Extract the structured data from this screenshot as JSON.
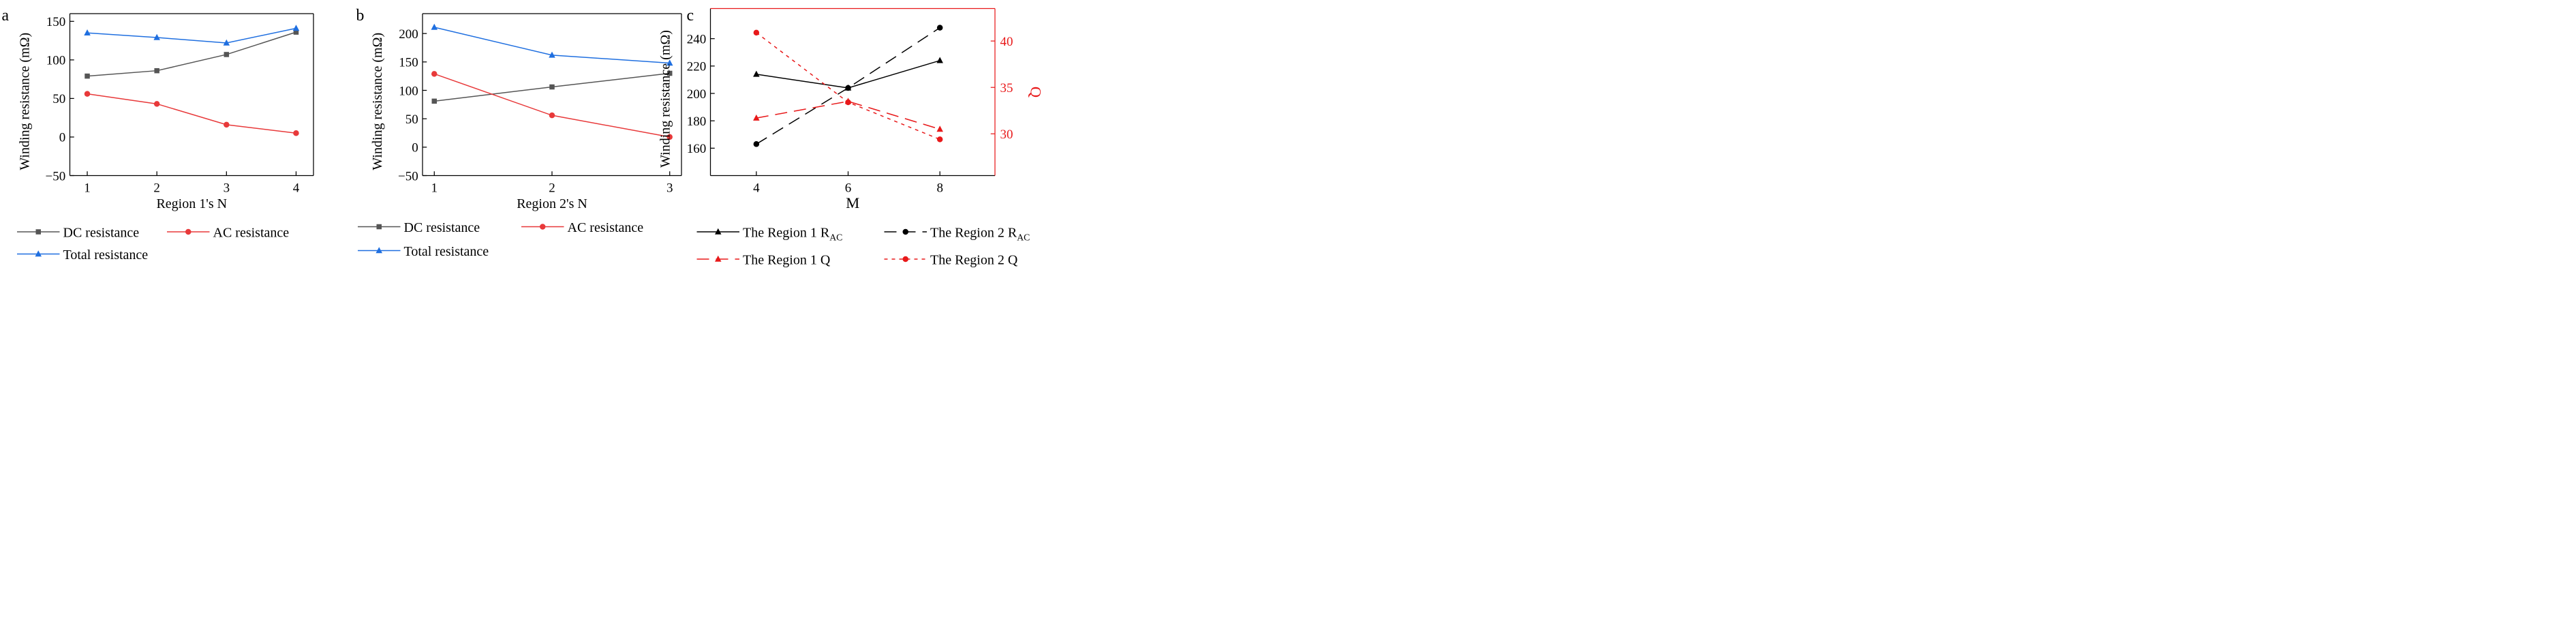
{
  "chart_data": [
    {
      "panel_label": "a",
      "type": "line",
      "x": [
        1,
        2,
        3,
        4
      ],
      "xticks": [
        "1",
        "2",
        "3",
        "4"
      ],
      "xlim": [
        0.75,
        4.25
      ],
      "ylim": [
        -50,
        160
      ],
      "yticks": [
        -50,
        0,
        50,
        100,
        150
      ],
      "ytick_labels": [
        "−50",
        "0",
        "50",
        "100",
        "150"
      ],
      "xlabel": "Region 1's N",
      "ylabel": "Winding resistance (mΩ)",
      "series": [
        {
          "name": "DC resistance",
          "values": [
            79,
            86,
            107,
            136
          ],
          "color": "#555555",
          "marker": "square",
          "dash": "solid"
        },
        {
          "name": "AC resistance",
          "values": [
            56,
            43,
            16,
            5
          ],
          "color": "#e8393a",
          "marker": "circle",
          "dash": "solid"
        },
        {
          "name": "Total resistance",
          "values": [
            135,
            129,
            122,
            141
          ],
          "color": "#1f6fe0",
          "marker": "triangle",
          "dash": "solid"
        }
      ]
    },
    {
      "panel_label": "b",
      "type": "line",
      "x": [
        1,
        2,
        3
      ],
      "xticks": [
        "1",
        "2",
        "3"
      ],
      "xlim": [
        0.9,
        3.1
      ],
      "ylim": [
        -50,
        235
      ],
      "yticks": [
        -50,
        0,
        50,
        100,
        150,
        200
      ],
      "ytick_labels": [
        "−50",
        "0",
        "50",
        "100",
        "150",
        "200"
      ],
      "xlabel": "Region 2's N",
      "ylabel": "Winding resistance (mΩ)",
      "series": [
        {
          "name": "DC resistance",
          "values": [
            81,
            106,
            130
          ],
          "color": "#555555",
          "marker": "square",
          "dash": "solid"
        },
        {
          "name": "AC resistance",
          "values": [
            129,
            56,
            18
          ],
          "color": "#e8393a",
          "marker": "circle",
          "dash": "solid"
        },
        {
          "name": "Total resistance",
          "values": [
            211,
            162,
            148
          ],
          "color": "#1f6fe0",
          "marker": "triangle",
          "dash": "solid"
        }
      ]
    },
    {
      "panel_label": "c",
      "type": "line",
      "x": [
        4,
        6,
        8
      ],
      "xticks": [
        "4",
        "6",
        "8"
      ],
      "xlim": [
        3,
        9.2
      ],
      "ylim": [
        140,
        262
      ],
      "yticks": [
        160,
        180,
        200,
        220,
        240
      ],
      "ytick_labels": [
        "160",
        "180",
        "200",
        "220",
        "240"
      ],
      "y2lim": [
        25.5,
        43.5
      ],
      "y2ticks": [
        30,
        35,
        40
      ],
      "y2tick_labels": [
        "30",
        "35",
        "40"
      ],
      "xlabel": "M",
      "ylabel": "Winding resistance (mΩ)",
      "y2label": "Q",
      "y2color": "#e8191a",
      "series": [
        {
          "name": "The Region 1 R",
          "sub": "AC",
          "values": [
            214,
            204,
            224
          ],
          "axis": "left",
          "color": "#000000",
          "marker": "triangle",
          "dash": "solid"
        },
        {
          "name": "The Region 2 R",
          "sub": "AC",
          "values": [
            163,
            204,
            248
          ],
          "axis": "left",
          "color": "#000000",
          "marker": "circle",
          "dash": "dashed"
        },
        {
          "name": "The Region 1 Q",
          "sub": "",
          "values": [
            31.7,
            33.5,
            30.5
          ],
          "axis": "right",
          "color": "#e8191a",
          "marker": "triangle",
          "dash": "dashed"
        },
        {
          "name": "The Region 2 Q",
          "sub": "",
          "values": [
            40.9,
            33.4,
            29.4
          ],
          "axis": "right",
          "color": "#e8191a",
          "marker": "circle",
          "dash": "dotted"
        }
      ]
    }
  ]
}
